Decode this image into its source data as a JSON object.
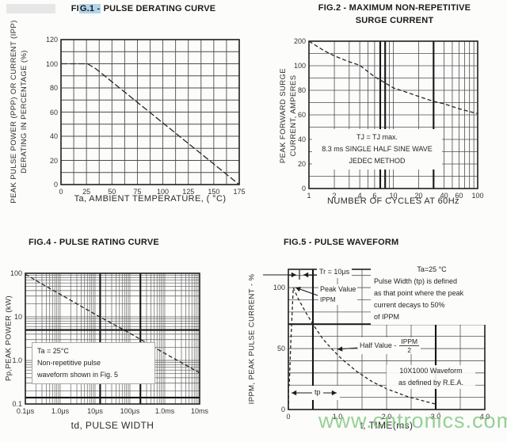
{
  "watermark": {
    "text": "www.cntronics.com",
    "color": "rgba(125,196,125,0.8)"
  },
  "title_highlight_color": "#b3d4ea",
  "chart_data": [
    {
      "id": "fig1",
      "type": "line",
      "title": "FIG.1 - PULSE DERATING CURVE",
      "title_parts": {
        "pre": "FI",
        "hl": "G.1 -",
        "post": " PULSE DERATING CURVE"
      },
      "xlabel": "Ta, AMBIENT TEMPERATURE, ( °C)",
      "ylabel": [
        "PEAK PULSE POWER (PPP) OR CURRENT (IPP)",
        "DERATING IN PERCENTAGE (%)"
      ],
      "xscale": "linear",
      "xlim": [
        0,
        175
      ],
      "x_minor_step": 12.5,
      "yscale": "linear",
      "ylim": [
        0,
        120
      ],
      "y_minor_step": 10,
      "grid": true,
      "legend": "none",
      "xticks": {
        "values": [
          0,
          25,
          50,
          75,
          100,
          125,
          150,
          175
        ],
        "labels": [
          "0",
          "25",
          "50",
          "75",
          "100",
          "125",
          "150",
          "175"
        ]
      },
      "yticks": {
        "values": [
          0,
          20,
          40,
          60,
          80,
          100,
          120
        ],
        "labels": [
          "0",
          "20",
          "40",
          "60",
          "80",
          "100",
          "120"
        ]
      },
      "series": [
        {
          "name": "derating-curve",
          "points": [
            [
              0,
              100
            ],
            [
              26,
              100
            ],
            [
              34,
              96
            ],
            [
              175,
              0
            ]
          ]
        }
      ]
    },
    {
      "id": "fig2",
      "type": "line",
      "title": "FIG.2 - MAXIMUM NON-REPETITIVE SURGE CURRENT",
      "title_lines": [
        "FIG.2 - MAXIMUM NON-REPETITIVE",
        "SURGE CURRENT"
      ],
      "xlabel": "NUMBER OF CYCLES AT 60Hz",
      "ylabel": [
        "PEAK FORWARD SURGE",
        "CURRENT, AMPERES"
      ],
      "xscale": "log",
      "xlim": [
        1,
        100
      ],
      "yscale": "segmented",
      "y_stops": [
        0,
        20,
        40,
        60,
        80,
        100,
        200
      ],
      "grid": true,
      "legend": "none",
      "xticks": {
        "values": [
          1,
          2,
          4,
          6,
          10,
          20,
          40,
          60,
          100
        ],
        "labels": [
          "1",
          "2",
          "4",
          "6",
          "10",
          "20",
          "40",
          "60",
          "100"
        ]
      },
      "yticks": {
        "values": [
          200,
          100,
          80,
          60,
          40,
          20,
          0
        ],
        "labels": [
          "200",
          "100",
          "80",
          "60",
          "40",
          "20",
          "0"
        ]
      },
      "annotations": [
        "TJ = TJ max.",
        "8.3 ms SINGLE HALF SINE WAVE",
        "JEDEC METHOD"
      ],
      "series": [
        {
          "name": "surge-current",
          "points": [
            [
              1,
              200
            ],
            [
              1.5,
              162
            ],
            [
              2,
              140
            ],
            [
              3,
              116
            ],
            [
              4,
              102
            ],
            [
              6,
              91
            ],
            [
              8,
              86
            ],
            [
              10,
              82
            ],
            [
              15,
              78
            ],
            [
              20,
              75
            ],
            [
              30,
              71
            ],
            [
              40,
              69
            ],
            [
              60,
              65
            ],
            [
              100,
              61
            ]
          ]
        }
      ]
    },
    {
      "id": "fig4",
      "type": "line",
      "title": "FIG.4 - PULSE RATING CURVE",
      "xlabel": "td, PULSE WIDTH",
      "ylabel": [
        "Pp,PEAK POWER (kW)"
      ],
      "xscale": "log",
      "xlim": [
        1e-07,
        0.01
      ],
      "yscale": "log",
      "ylim": [
        0.1,
        100
      ],
      "grid": true,
      "legend": "none",
      "xticks": {
        "values": [
          1e-07,
          1e-06,
          1e-05,
          0.0001,
          0.001,
          0.01
        ],
        "labels": [
          "0.1μs",
          "1.0μs",
          "10μs",
          "100μs",
          "1.0ms",
          "10ms"
        ]
      },
      "yticks": {
        "values": [
          100,
          10,
          1,
          0.1
        ],
        "labels": [
          "100",
          "10",
          "1.0",
          "0.1"
        ]
      },
      "note": [
        "Ta = 25°C",
        "Non-repetitive pulse",
        "waveform shown in Fig. 5"
      ],
      "series": [
        {
          "name": "pulse-rating",
          "points": [
            [
              1e-07,
              95
            ],
            [
              2e-07,
              69
            ],
            [
              5e-07,
              45
            ],
            [
              1e-06,
              33
            ],
            [
              1e-05,
              11.5
            ],
            [
              0.0001,
              4.2
            ],
            [
              0.001,
              1.45
            ],
            [
              0.01,
              0.52
            ]
          ]
        }
      ]
    },
    {
      "id": "fig5",
      "type": "line",
      "title": "FIG.5 - PULSE WAVEFORM",
      "xlabel": "t, TIME(ms)",
      "ylabel": [
        "IPPM, PEAK PULSE CURRENT  -  %"
      ],
      "xscale": "linear",
      "xlim": [
        0,
        4
      ],
      "x_minor_step": 0.5,
      "yscale": "linear",
      "ylim": [
        0,
        115
      ],
      "y_minor_step": 10,
      "grid": true,
      "legend": "none",
      "xticks": {
        "values": [
          0,
          1,
          2,
          3,
          4
        ],
        "labels": [
          "0",
          "1.0",
          "2.0",
          "3.0",
          "4.0"
        ]
      },
      "yticks": {
        "values": [
          0,
          50,
          100
        ],
        "labels": [
          "0",
          "50",
          "100"
        ]
      },
      "annotations": {
        "tr": "Tr = 10μs",
        "peak_line1": "Peak Value",
        "peak_line2": "IPPM",
        "cond": [
          "Ta=25 °C",
          "Pulse Width (tp) is defined",
          "as that point where the peak",
          "current decays to 50%",
          "of IPPM"
        ],
        "half_label": "Half Value -",
        "half_num": "IPPM",
        "half_den": "2",
        "wave": [
          "10X1000 Waveform",
          "as defined by R.E.A."
        ],
        "tp": "tp"
      },
      "series": [
        {
          "name": "pulse-waveform",
          "points": [
            [
              0,
              0
            ],
            [
              0.05,
              55
            ],
            [
              0.1,
              100
            ],
            [
              0.2,
              91
            ],
            [
              0.35,
              80
            ],
            [
              0.5,
              70
            ],
            [
              0.7,
              58
            ],
            [
              0.9,
              49
            ],
            [
              1.1,
              41
            ],
            [
              1.4,
              31
            ],
            [
              1.7,
              23
            ],
            [
              2.0,
              17
            ],
            [
              2.4,
              11
            ],
            [
              2.8,
              6.5
            ],
            [
              3.0,
              4.5
            ]
          ]
        }
      ]
    }
  ]
}
